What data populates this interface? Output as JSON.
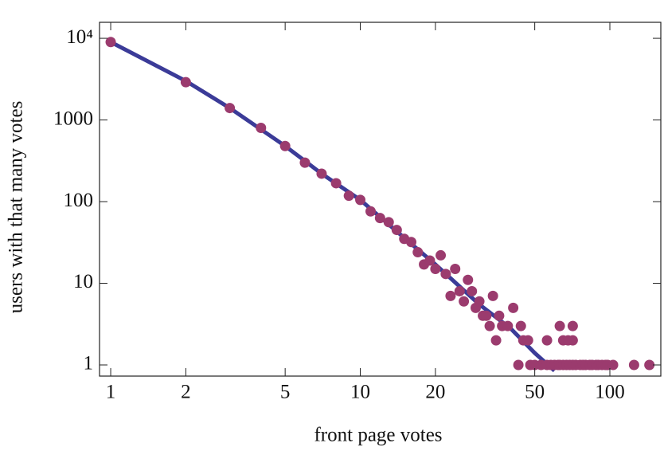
{
  "chart_data": {
    "type": "scatter",
    "xlabel": "front page votes",
    "ylabel": "users with that many votes",
    "xscale": "log",
    "yscale": "log",
    "xlim": [
      0.902,
      160
    ],
    "ylim": [
      0.73,
      15700
    ],
    "xticks": [
      1,
      2,
      5,
      10,
      20,
      50,
      100
    ],
    "yticks": [
      1,
      10,
      100,
      1000,
      {
        "value": 10000,
        "label": "10⁴"
      }
    ],
    "series": [
      {
        "type": "scatter",
        "color": "#9b3b6e",
        "x": [
          1,
          2,
          3,
          4,
          5,
          6,
          7,
          8,
          9,
          10,
          11,
          12,
          13,
          14,
          15,
          16,
          17,
          18,
          19,
          20,
          21,
          22,
          23,
          24,
          25,
          26,
          27,
          28,
          29,
          30,
          31,
          32,
          33,
          34,
          35,
          36,
          37,
          39,
          41,
          43,
          44,
          45,
          47,
          48,
          50,
          53,
          56,
          56,
          58,
          60,
          62,
          63,
          63,
          65,
          65,
          67,
          68,
          69,
          71,
          71,
          71,
          73,
          76,
          78,
          80,
          83,
          85,
          88,
          90,
          93,
          96,
          98,
          103,
          125,
          144
        ],
        "values": [
          9000,
          2900,
          1400,
          800,
          480,
          300,
          220,
          168,
          118,
          105,
          76,
          63,
          56,
          45,
          35,
          32,
          24,
          17,
          19,
          15,
          22,
          13,
          7,
          15,
          8,
          6,
          11,
          8,
          5,
          6,
          4,
          4,
          3,
          7,
          2,
          4,
          3,
          3,
          5,
          1,
          3,
          2,
          2,
          1,
          1,
          1,
          1,
          2,
          1,
          1,
          1,
          3,
          1,
          1,
          2,
          1,
          2,
          1,
          1,
          3,
          2,
          1,
          1,
          1,
          1,
          1,
          1,
          1,
          1,
          1,
          1,
          1,
          1,
          1,
          1
        ]
      },
      {
        "type": "line",
        "color": "#3b3b98",
        "x": [
          1,
          2,
          3,
          5,
          7,
          10,
          15,
          20,
          30,
          40,
          50,
          60
        ],
        "values": [
          9000,
          3000,
          1400,
          480,
          220,
          105,
          36,
          17,
          5.5,
          2.8,
          1.4,
          0.85
        ]
      }
    ]
  }
}
